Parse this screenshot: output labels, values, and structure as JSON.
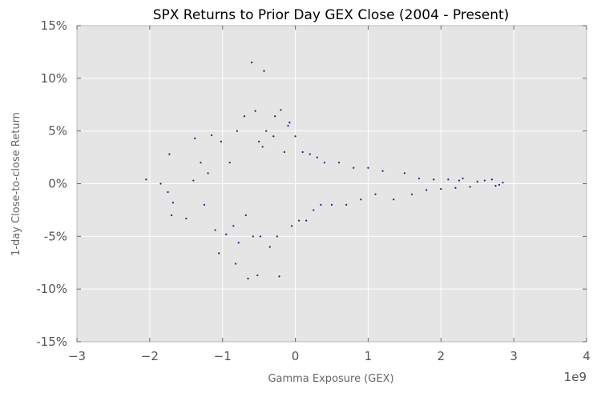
{
  "chart_data": {
    "type": "scatter",
    "title": "SPX Returns to Prior Day GEX Close (2004 - Present)",
    "xlabel": "Gamma Exposure (GEX)",
    "ylabel": "1-day Close-to-close Return",
    "x_offset_label": "1e9",
    "xlim": [
      -3,
      4
    ],
    "ylim": [
      -0.15,
      0.15
    ],
    "x_ticks": [
      -3,
      -2,
      -1,
      0,
      1,
      2,
      3,
      4
    ],
    "x_tick_labels": [
      "−3",
      "−2",
      "−1",
      "0",
      "1",
      "2",
      "3",
      "4"
    ],
    "y_ticks": [
      -0.15,
      -0.1,
      -0.05,
      0,
      0.05,
      0.1,
      0.15
    ],
    "y_tick_labels": [
      "-15%",
      "-10%",
      "-5%",
      "0%",
      "5%",
      "10%",
      "15%"
    ],
    "grid": true,
    "background_color": "#e5e5e5",
    "point_color": "#1a1a7a",
    "series": [
      {
        "points": [
          [
            -2.05,
            0.004
          ],
          [
            -1.85,
            0.0
          ],
          [
            -1.75,
            -0.008
          ],
          [
            -1.73,
            0.028
          ],
          [
            -1.7,
            -0.03
          ],
          [
            -1.68,
            -0.018
          ],
          [
            -1.5,
            -0.033
          ],
          [
            -1.4,
            0.003
          ],
          [
            -1.38,
            0.043
          ],
          [
            -1.3,
            0.02
          ],
          [
            -1.25,
            -0.02
          ],
          [
            -1.2,
            0.01
          ],
          [
            -1.15,
            0.046
          ],
          [
            -1.1,
            -0.044
          ],
          [
            -1.05,
            -0.066
          ],
          [
            -1.02,
            0.04
          ],
          [
            -0.95,
            -0.048
          ],
          [
            -0.9,
            0.02
          ],
          [
            -0.85,
            -0.04
          ],
          [
            -0.82,
            -0.076
          ],
          [
            -0.8,
            0.05
          ],
          [
            -0.78,
            -0.056
          ],
          [
            -0.7,
            0.064
          ],
          [
            -0.68,
            -0.03
          ],
          [
            -0.65,
            -0.09
          ],
          [
            -0.6,
            0.115
          ],
          [
            -0.58,
            -0.05
          ],
          [
            -0.55,
            0.069
          ],
          [
            -0.52,
            -0.087
          ],
          [
            -0.5,
            0.04
          ],
          [
            -0.48,
            -0.05
          ],
          [
            -0.45,
            0.035
          ],
          [
            -0.43,
            0.107
          ],
          [
            -0.4,
            0.05
          ],
          [
            -0.35,
            -0.06
          ],
          [
            -0.3,
            0.045
          ],
          [
            -0.28,
            0.064
          ],
          [
            -0.25,
            -0.05
          ],
          [
            -0.22,
            -0.088
          ],
          [
            -0.2,
            0.07
          ],
          [
            -0.15,
            0.03
          ],
          [
            -0.1,
            0.055
          ],
          [
            -0.08,
            0.058
          ],
          [
            -0.05,
            -0.04
          ],
          [
            0.0,
            0.045
          ],
          [
            0.05,
            -0.035
          ],
          [
            0.1,
            0.03
          ],
          [
            0.15,
            -0.035
          ],
          [
            0.2,
            0.028
          ],
          [
            0.25,
            -0.025
          ],
          [
            0.3,
            0.025
          ],
          [
            0.35,
            -0.02
          ],
          [
            0.4,
            0.02
          ],
          [
            0.5,
            -0.02
          ],
          [
            0.6,
            0.02
          ],
          [
            0.7,
            -0.02
          ],
          [
            0.8,
            0.015
          ],
          [
            0.9,
            -0.015
          ],
          [
            1.0,
            0.015
          ],
          [
            1.1,
            -0.01
          ],
          [
            1.2,
            0.012
          ],
          [
            1.35,
            -0.015
          ],
          [
            1.5,
            0.01
          ],
          [
            1.6,
            -0.01
          ],
          [
            1.7,
            0.005
          ],
          [
            1.8,
            -0.006
          ],
          [
            1.9,
            0.004
          ],
          [
            2.0,
            -0.005
          ],
          [
            2.1,
            0.004
          ],
          [
            2.2,
            -0.004
          ],
          [
            2.25,
            0.003
          ],
          [
            2.3,
            0.005
          ],
          [
            2.4,
            -0.003
          ],
          [
            2.5,
            0.002
          ],
          [
            2.6,
            0.003
          ],
          [
            2.7,
            0.004
          ],
          [
            2.75,
            -0.002
          ],
          [
            2.8,
            -0.001
          ],
          [
            2.85,
            0.001
          ]
        ]
      }
    ]
  }
}
